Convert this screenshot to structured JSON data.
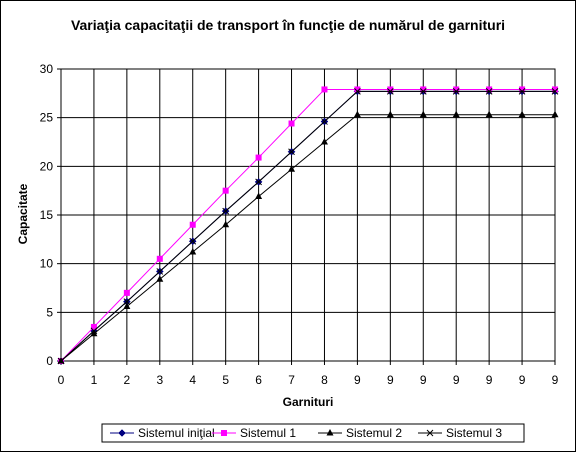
{
  "chart_data": {
    "type": "line",
    "title": "Variaţia capacitaţii de transport în funcţie de numărul de garnituri",
    "xlabel": "Garnituri",
    "ylabel": "Capacitate",
    "categories": [
      "0",
      "1",
      "2",
      "3",
      "4",
      "5",
      "6",
      "7",
      "8",
      "9",
      "9",
      "9",
      "9",
      "9",
      "9",
      "9"
    ],
    "ylim": [
      0,
      30
    ],
    "yticks": [
      "0",
      "5",
      "10",
      "15",
      "20",
      "25",
      "30"
    ],
    "grid": true,
    "legend_position": "bottom",
    "series": [
      {
        "name": "Sistemul iniţial",
        "color": "#000080",
        "marker": "diamond",
        "values": [
          0,
          3.1,
          6.1,
          9.2,
          12.3,
          15.4,
          18.4,
          21.5,
          24.6,
          27.7,
          27.7,
          27.7,
          27.7,
          27.7,
          27.7,
          27.7
        ]
      },
      {
        "name": "Sistemul 1",
        "color": "#ff00ff",
        "marker": "square",
        "values": [
          0,
          3.5,
          7.0,
          10.5,
          14.0,
          17.5,
          20.9,
          24.4,
          27.9,
          27.9,
          27.9,
          27.9,
          27.9,
          27.9,
          27.9,
          27.9
        ]
      },
      {
        "name": "Sistemul 2",
        "color": "#000000",
        "marker": "triangle",
        "values": [
          0,
          2.8,
          5.6,
          8.4,
          11.2,
          14.0,
          16.9,
          19.7,
          22.5,
          25.3,
          25.3,
          25.3,
          25.3,
          25.3,
          25.3,
          25.3
        ]
      },
      {
        "name": "Sistemul 3",
        "color": "#000000",
        "marker": "x",
        "values": [
          0,
          3.1,
          6.1,
          9.2,
          12.3,
          15.4,
          18.4,
          21.5,
          24.6,
          27.7,
          27.7,
          27.7,
          27.7,
          27.7,
          27.7,
          27.7
        ]
      }
    ]
  }
}
